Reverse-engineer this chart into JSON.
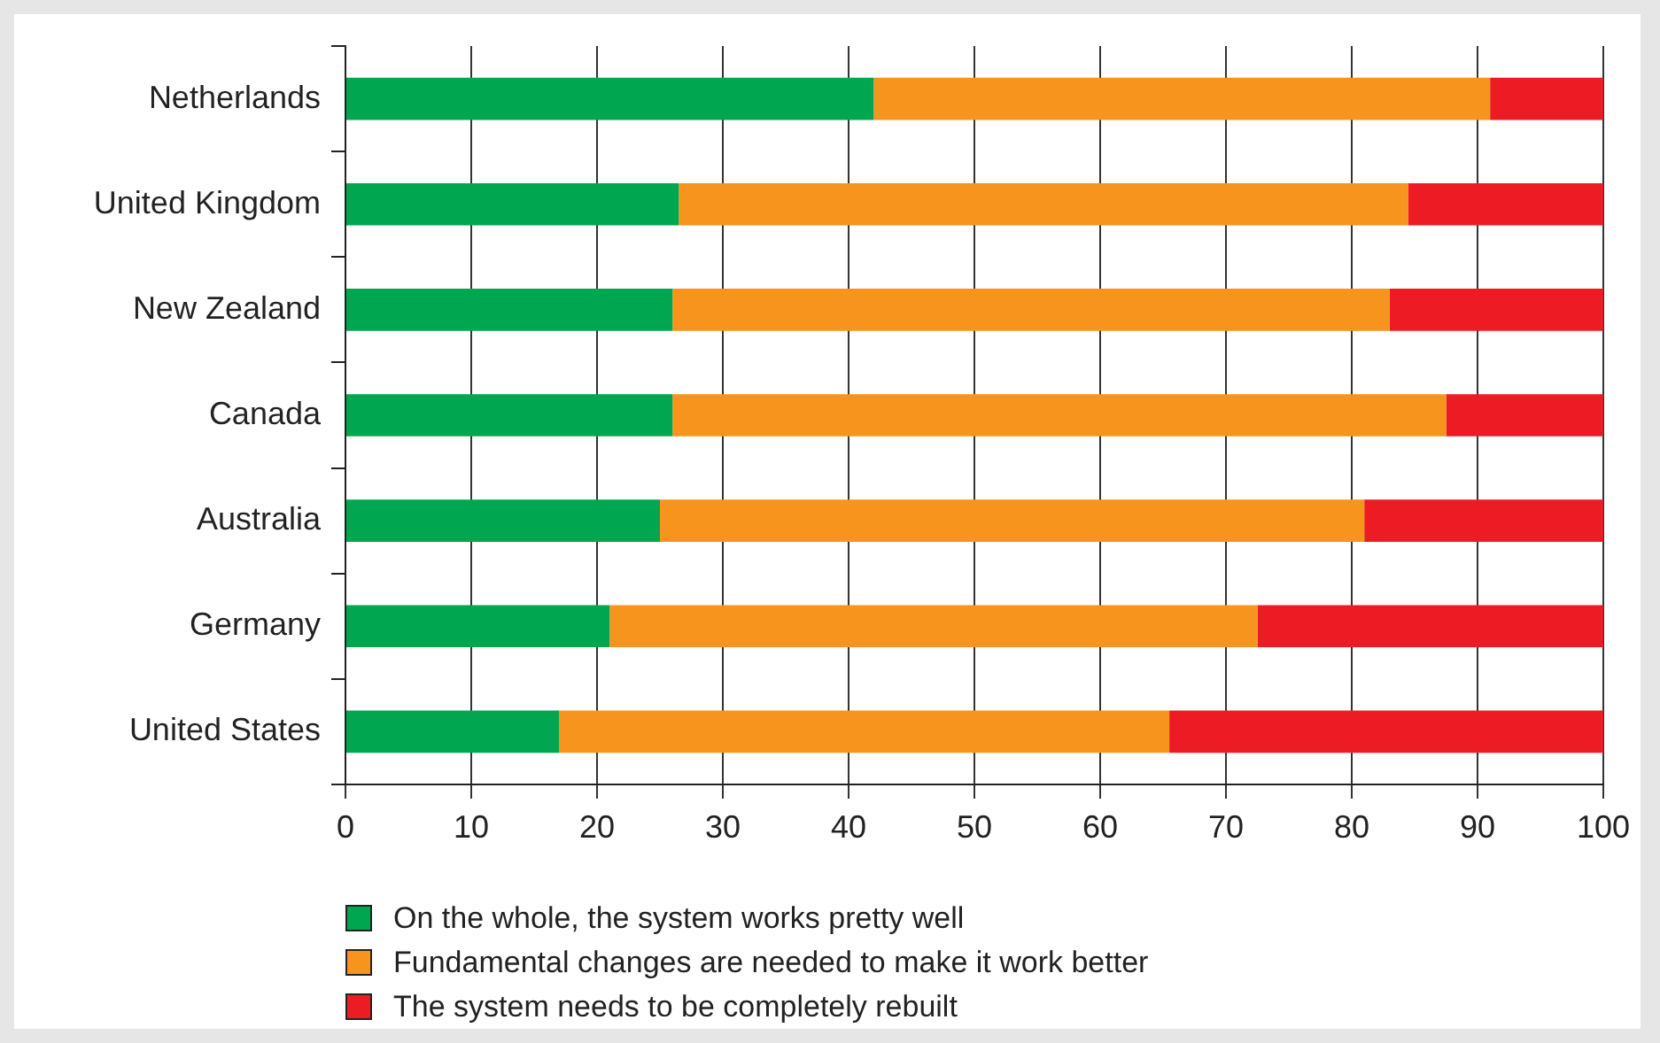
{
  "chart_data": {
    "type": "bar",
    "orientation": "horizontal",
    "stacked": true,
    "categories": [
      "Netherlands",
      "United Kingdom",
      "New Zealand",
      "Canada",
      "Australia",
      "Germany",
      "United States"
    ],
    "series": [
      {
        "name": "On the whole, the system works pretty well",
        "color": "#00a650",
        "values": [
          42,
          26.5,
          26,
          26,
          25,
          21,
          17
        ]
      },
      {
        "name": "Fundamental changes are needed to make it work better",
        "color": "#f7941d",
        "values": [
          49,
          58,
          57,
          61.5,
          56,
          51.5,
          48.5
        ]
      },
      {
        "name": "The system needs to be completely rebuilt",
        "color": "#ed1c24",
        "values": [
          9,
          15.5,
          17,
          12.5,
          19,
          27.5,
          34.5
        ]
      }
    ],
    "xlim": [
      0,
      100
    ],
    "xticks": [
      0,
      10,
      20,
      30,
      40,
      50,
      60,
      70,
      80,
      90,
      100
    ],
    "grid": "x",
    "legend": "bottom"
  }
}
